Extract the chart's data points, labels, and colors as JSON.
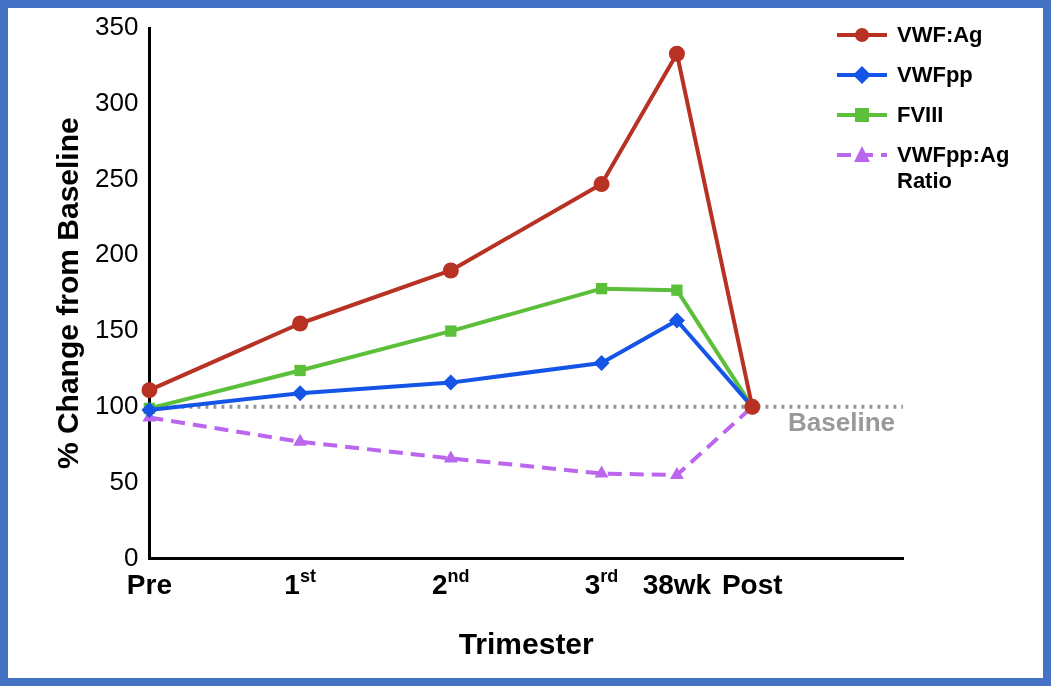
{
  "chart_data": {
    "type": "line",
    "xlabel": "Trimester",
    "ylabel": "% Change from Baseline",
    "categories": [
      "Pre",
      null,
      "1$^{st}$",
      null,
      "2$^{nd}$",
      null,
      "3$^{rd}$",
      "38wk",
      "Post",
      null,
      null
    ],
    "ylim": [
      0,
      350
    ],
    "yticks": [
      0,
      50,
      100,
      150,
      200,
      250,
      300,
      350
    ],
    "series": [
      {
        "name": "VWF:Ag",
        "color": "#b83224",
        "marker": "circle",
        "line_style": "solid",
        "values": [
          111,
          null,
          155,
          null,
          190,
          null,
          247,
          333,
          100,
          null,
          null
        ]
      },
      {
        "name": "VWFpp",
        "color": "#1455e8",
        "marker": "diamond",
        "line_style": "solid",
        "values": [
          98,
          null,
          109,
          null,
          116,
          null,
          129,
          157,
          100,
          null,
          null
        ]
      },
      {
        "name": "FVIII",
        "color": "#5cbf3a",
        "marker": "square",
        "line_style": "solid",
        "values": [
          99,
          null,
          124,
          null,
          150,
          null,
          178,
          177,
          100,
          null,
          null
        ]
      },
      {
        "name": "VWFpp:Ag Ratio",
        "color": "#bb66ee",
        "marker": "triangle",
        "line_style": "dashed",
        "values": [
          93,
          null,
          77,
          null,
          66,
          null,
          56,
          55,
          100,
          null,
          null
        ]
      }
    ],
    "ref_lines": [
      {
        "axis": "y",
        "value": 100,
        "label": "Baseline",
        "color": "#999999",
        "line_style": "dotted"
      }
    ],
    "legend": "top right",
    "grid": false
  }
}
